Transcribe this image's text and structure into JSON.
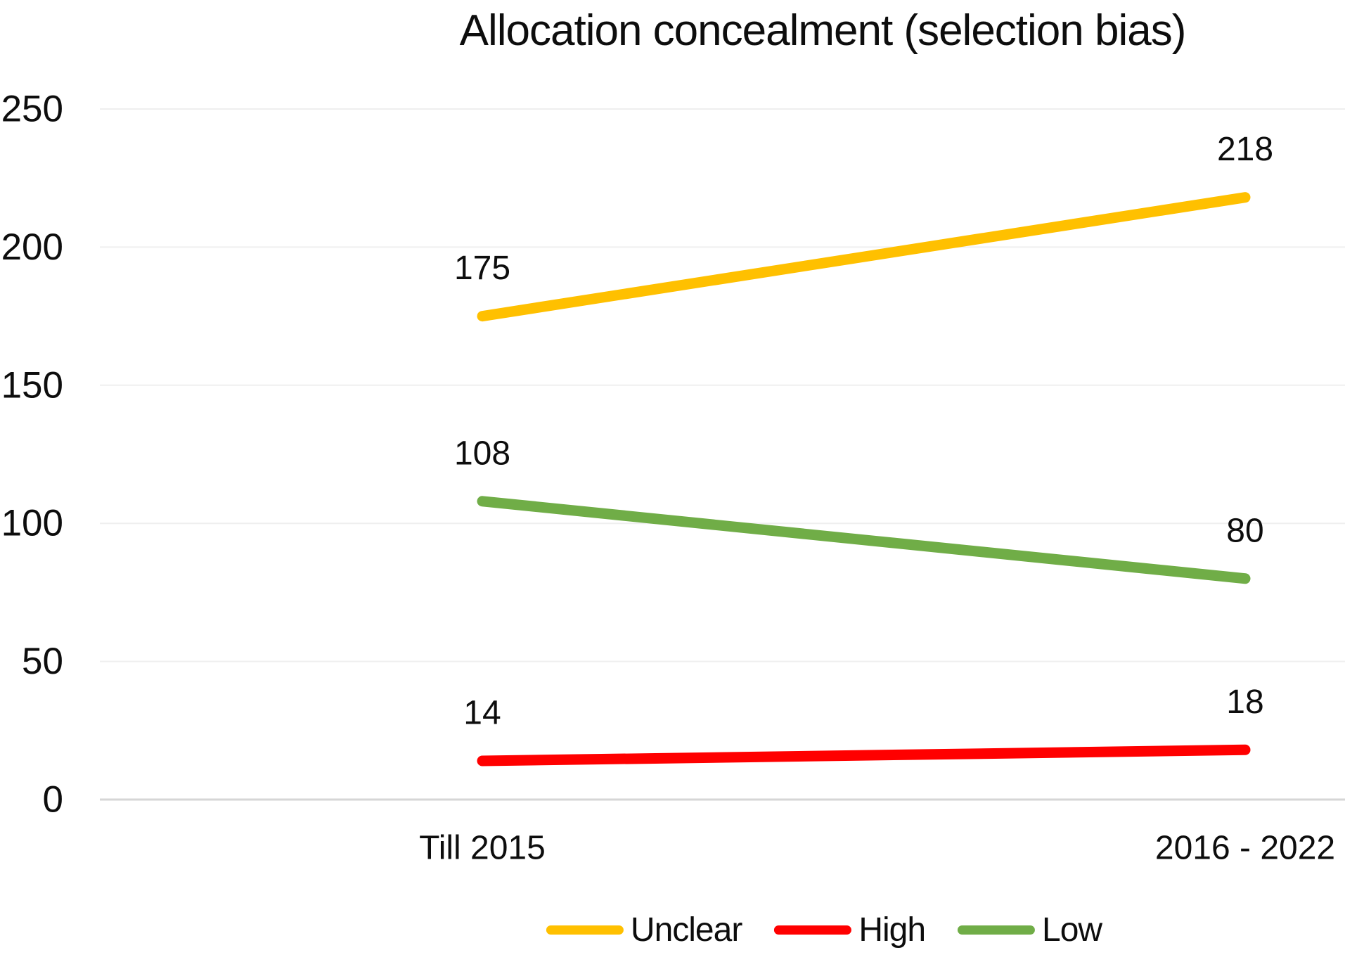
{
  "chart_data": {
    "type": "line",
    "title": "Allocation concealment (selection bias)",
    "categories": [
      "Till 2015",
      "2016 - 2022"
    ],
    "series": [
      {
        "name": "Unclear",
        "color": "#FFC000",
        "values": [
          175,
          218
        ]
      },
      {
        "name": "High",
        "color": "#FF0000",
        "values": [
          14,
          18
        ]
      },
      {
        "name": "Low",
        "color": "#70AD47",
        "values": [
          108,
          80
        ]
      }
    ],
    "xlabel": "",
    "ylabel": "",
    "ylim": [
      0,
      250
    ],
    "y_ticks": [
      0,
      50,
      100,
      150,
      200,
      250
    ],
    "grid": true,
    "data_labels": true,
    "legend_position": "bottom"
  },
  "colors": {
    "background": "#FFFFFF",
    "text": "#0D0D0D",
    "gridline": "#EFEFEF",
    "axis_line": "#D6D6D6",
    "unclear": "#FFC000",
    "high": "#FF0000",
    "low": "#70AD47"
  }
}
